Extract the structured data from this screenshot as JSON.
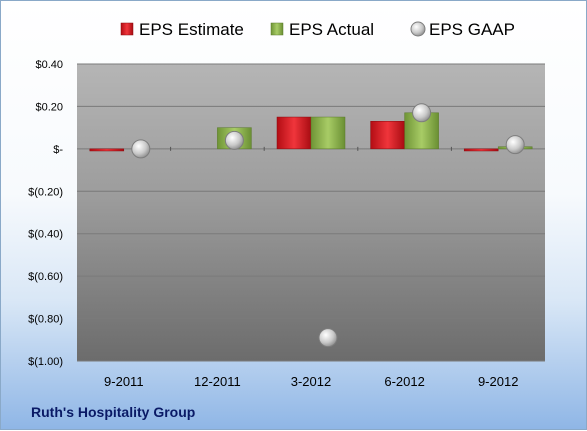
{
  "chart_data": {
    "type": "bar",
    "categories": [
      "9-2011",
      "12-2011",
      "3-2012",
      "6-2012",
      "9-2012"
    ],
    "series": [
      {
        "name": "EPS Estimate",
        "type": "bar",
        "values": [
          -0.01,
          null,
          0.15,
          0.13,
          -0.01
        ],
        "color": "#d11a22"
      },
      {
        "name": "EPS Actual",
        "type": "bar",
        "values": [
          null,
          0.1,
          0.15,
          0.17,
          0.01
        ],
        "color": "#8ab04a"
      },
      {
        "name": "EPS GAAP",
        "type": "scatter",
        "values": [
          0.0,
          0.04,
          -0.89,
          0.17,
          0.02
        ],
        "color": "#b8b8b8"
      }
    ],
    "y_ticks": [
      "$0.40",
      "$0.20",
      "$-",
      "$(0.20)",
      "$(0.40)",
      "$(0.60)",
      "$(0.80)",
      "$(1.00)"
    ],
    "ylim": [
      -1.0,
      0.4
    ],
    "grid": true,
    "legend": "top"
  },
  "company_name": "Ruth's Hospitality Group"
}
